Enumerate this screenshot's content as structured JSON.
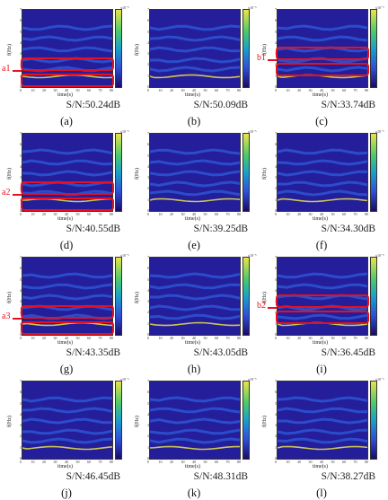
{
  "axis": {
    "ylabel": "f(Hz)",
    "xlabel": "time(s)",
    "yticks": [
      "7",
      "6",
      "5",
      "4",
      "3",
      "2",
      "1",
      "0"
    ],
    "xticks": [
      "0",
      "10",
      "20",
      "30",
      "40",
      "50",
      "60",
      "70",
      "80"
    ],
    "colorbar_exponent": "x10⁻⁵"
  },
  "colors": {
    "background": "#241e9a",
    "band": "#2f5fe0",
    "ridge": "#e9e34a",
    "annotation": "#e8101a"
  },
  "panels": [
    {
      "caption": "(a)",
      "snr": "S/N:50.24dB",
      "marker": "a1",
      "boxes": 2
    },
    {
      "caption": "(b)",
      "snr": "S/N:50.09dB",
      "marker": "",
      "boxes": 0
    },
    {
      "caption": "(c)",
      "snr": "S/N:33.74dB",
      "marker": "b1",
      "boxes": 2
    },
    {
      "caption": "(d)",
      "snr": "S/N:40.55dB",
      "marker": "a2",
      "boxes": 2
    },
    {
      "caption": "(e)",
      "snr": "S/N:39.25dB",
      "marker": "",
      "boxes": 0
    },
    {
      "caption": "(f)",
      "snr": "S/N:34.30dB",
      "marker": "",
      "boxes": 0
    },
    {
      "caption": "(g)",
      "snr": "S/N:43.35dB",
      "marker": "a3",
      "boxes": 2
    },
    {
      "caption": "(h)",
      "snr": "S/N:43.05dB",
      "marker": "",
      "boxes": 0
    },
    {
      "caption": "(i)",
      "snr": "S/N:36.45dB",
      "marker": "b2",
      "boxes": 2
    },
    {
      "caption": "(j)",
      "snr": "S/N:46.45dB",
      "marker": "",
      "boxes": 0
    },
    {
      "caption": "(k)",
      "snr": "S/N:48.31dB",
      "marker": "",
      "boxes": 0
    },
    {
      "caption": "(l)",
      "snr": "S/N:38.27dB",
      "marker": "",
      "boxes": 0
    }
  ]
}
